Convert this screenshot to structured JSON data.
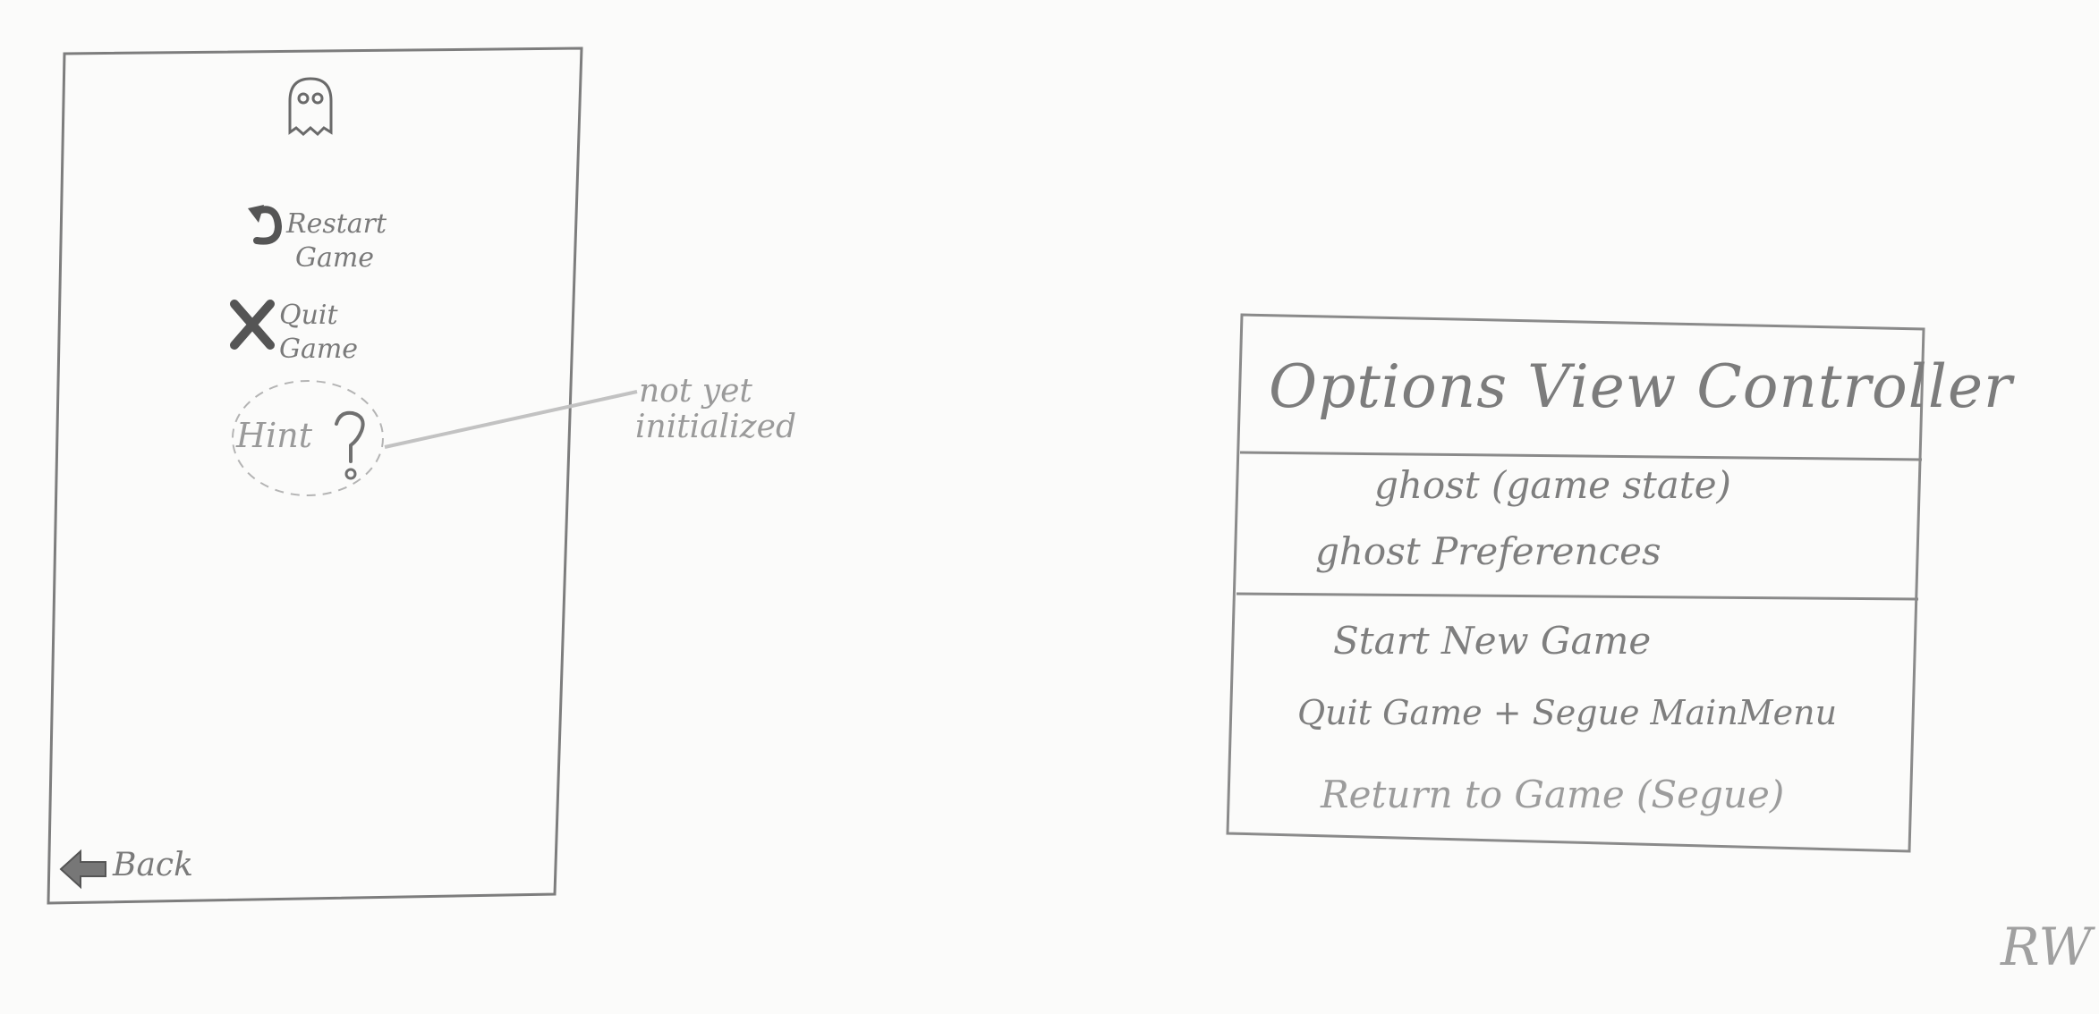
{
  "phone_mock": {
    "menu": [
      {
        "id": "restart",
        "lines": [
          "Restart",
          "Game"
        ],
        "icon": "restart-arrow-icon"
      },
      {
        "id": "quit",
        "lines": [
          "Quit",
          "Game"
        ],
        "icon": "x-icon"
      },
      {
        "id": "hint",
        "label": "Hint",
        "icon": "question-mark-icon"
      }
    ],
    "back_label": "Back",
    "back_icon": "back-arrow-icon",
    "top_icon": "ghost-icon"
  },
  "annotation": {
    "lines": [
      "not yet",
      "initialized"
    ]
  },
  "uml": {
    "class_name": "Options View Controller",
    "properties": [
      "ghost (game state)",
      "ghost Preferences"
    ],
    "methods": [
      "Start New Game",
      "Quit Game + Segue MainMenu",
      "Return to Game (Segue)"
    ]
  },
  "signature": "RW"
}
